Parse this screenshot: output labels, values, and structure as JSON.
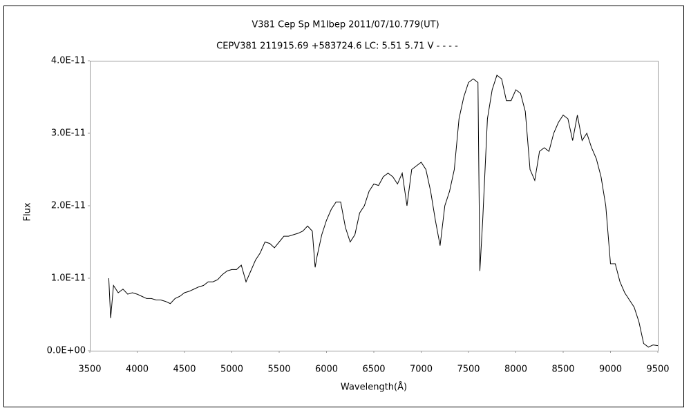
{
  "chart_data": {
    "type": "line",
    "title": "V381 Cep   Sp M1Ibep   2011/07/10.779(UT)",
    "subtitle": "CEPV381 211915.69 +583724.6 LC: 5.51 5.71 V - - - -",
    "xlabel": "Wavelength(Å)",
    "ylabel": "Flux",
    "xlim": [
      3500,
      9500
    ],
    "xticks": [
      3500,
      4000,
      4500,
      5000,
      5500,
      6000,
      6500,
      7000,
      7500,
      8000,
      8500,
      9000,
      9500
    ],
    "ylim": [
      0,
      4e-11
    ],
    "yticks": [
      {
        "value": 0,
        "label": "0.0E+00"
      },
      {
        "value": 1e-11,
        "label": "1.0E-11"
      },
      {
        "value": 2e-11,
        "label": "2.0E-11"
      },
      {
        "value": 3e-11,
        "label": "3.0E-11"
      },
      {
        "value": 4e-11,
        "label": "4.0E-11"
      }
    ],
    "grid": false,
    "color": "#000000",
    "x": [
      3700,
      3720,
      3750,
      3800,
      3850,
      3900,
      3950,
      4000,
      4050,
      4100,
      4150,
      4200,
      4250,
      4300,
      4350,
      4400,
      4450,
      4500,
      4550,
      4600,
      4650,
      4700,
      4750,
      4800,
      4850,
      4900,
      4950,
      5000,
      5050,
      5100,
      5150,
      5200,
      5250,
      5300,
      5350,
      5400,
      5450,
      5500,
      5550,
      5600,
      5650,
      5700,
      5750,
      5800,
      5850,
      5880,
      5900,
      5950,
      6000,
      6050,
      6100,
      6150,
      6200,
      6250,
      6300,
      6350,
      6400,
      6450,
      6500,
      6550,
      6600,
      6650,
      6700,
      6750,
      6800,
      6850,
      6900,
      6950,
      7000,
      7050,
      7100,
      7150,
      7200,
      7250,
      7300,
      7350,
      7400,
      7450,
      7500,
      7550,
      7600,
      7620,
      7650,
      7700,
      7750,
      7800,
      7850,
      7900,
      7950,
      8000,
      8050,
      8100,
      8150,
      8200,
      8250,
      8300,
      8350,
      8400,
      8450,
      8500,
      8550,
      8600,
      8650,
      8700,
      8750,
      8800,
      8850,
      8900,
      8950,
      9000,
      9050,
      9100,
      9150,
      9200,
      9250,
      9300,
      9350,
      9400,
      9450,
      9500
    ],
    "values": [
      1e-11,
      4.5e-12,
      9e-12,
      8e-12,
      8.5e-12,
      7.8e-12,
      8e-12,
      7.8e-12,
      7.5e-12,
      7.2e-12,
      7.2e-12,
      7e-12,
      7e-12,
      6.8e-12,
      6.5e-12,
      7.2e-12,
      7.5e-12,
      8e-12,
      8.2e-12,
      8.5e-12,
      8.8e-12,
      9e-12,
      9.5e-12,
      9.5e-12,
      9.8e-12,
      1.05e-11,
      1.1e-11,
      1.12e-11,
      1.12e-11,
      1.18e-11,
      9.5e-12,
      1.1e-11,
      1.25e-11,
      1.35e-11,
      1.5e-11,
      1.48e-11,
      1.42e-11,
      1.5e-11,
      1.58e-11,
      1.58e-11,
      1.6e-11,
      1.62e-11,
      1.65e-11,
      1.72e-11,
      1.65e-11,
      1.15e-11,
      1.3e-11,
      1.6e-11,
      1.8e-11,
      1.95e-11,
      2.05e-11,
      2.05e-11,
      1.7e-11,
      1.5e-11,
      1.6e-11,
      1.9e-11,
      2e-11,
      2.2e-11,
      2.3e-11,
      2.28e-11,
      2.4e-11,
      2.45e-11,
      2.4e-11,
      2.3e-11,
      2.45e-11,
      2e-11,
      2.5e-11,
      2.55e-11,
      2.6e-11,
      2.5e-11,
      2.2e-11,
      1.8e-11,
      1.45e-11,
      2e-11,
      2.2e-11,
      2.5e-11,
      3.2e-11,
      3.5e-11,
      3.7e-11,
      3.75e-11,
      3.7e-11,
      1.1e-11,
      1.8e-11,
      3.2e-11,
      3.6e-11,
      3.8e-11,
      3.75e-11,
      3.45e-11,
      3.45e-11,
      3.6e-11,
      3.55e-11,
      3.3e-11,
      2.5e-11,
      2.35e-11,
      2.75e-11,
      2.8e-11,
      2.75e-11,
      3e-11,
      3.15e-11,
      3.25e-11,
      3.2e-11,
      2.9e-11,
      3.25e-11,
      2.9e-11,
      3e-11,
      2.8e-11,
      2.65e-11,
      2.4e-11,
      2e-11,
      1.2e-11,
      1.2e-11,
      9.5e-12,
      8e-12,
      7e-12,
      6e-12,
      4e-12,
      1e-12,
      5e-13,
      8e-13,
      7e-13
    ]
  }
}
